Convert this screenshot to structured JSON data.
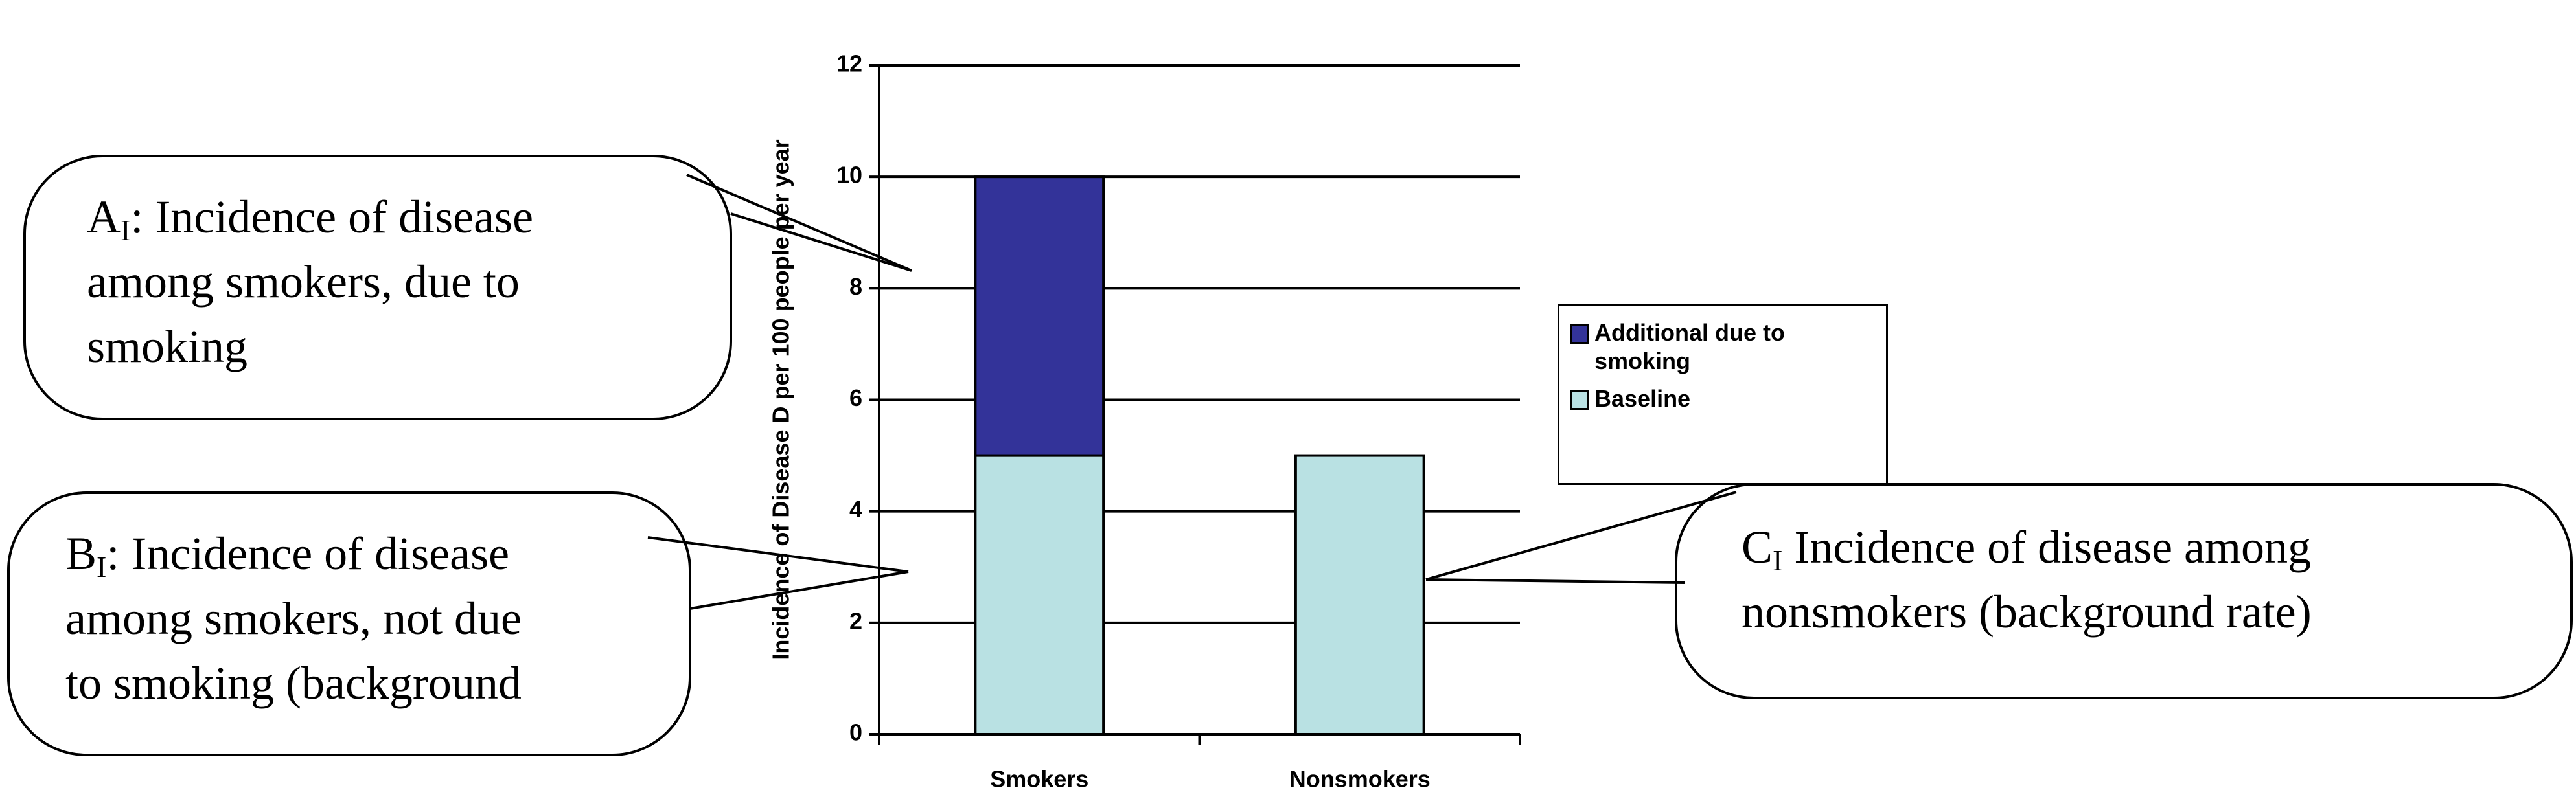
{
  "chart_data": {
    "type": "stacked-bar",
    "y_label": "Incidence of Disease D per 100 people per year",
    "categories": [
      "Smokers",
      "Nonsmokers"
    ],
    "series": [
      {
        "name": "Baseline",
        "color": "#b9e1e3",
        "values": [
          5,
          5
        ]
      },
      {
        "name": "Additional due to smoking",
        "color": "#333399",
        "values": [
          5,
          0
        ]
      }
    ],
    "ylim": [
      0,
      12
    ],
    "yticks": [
      0,
      2,
      4,
      6,
      8,
      10,
      12
    ],
    "grid": true,
    "annotations": [
      {
        "letter": "A",
        "subscript": "I",
        "lines": [
          ": Incidence of disease",
          "among smokers, due to",
          "smoking"
        ]
      },
      {
        "letter": "B",
        "subscript": "I",
        "lines": [
          ": Incidence of disease",
          "among smokers, not due",
          "to smoking (background"
        ]
      },
      {
        "letter": "C",
        "subscript": "I",
        "lines": [
          " Incidence of disease among",
          "nonsmokers (background rate)"
        ]
      }
    ]
  }
}
